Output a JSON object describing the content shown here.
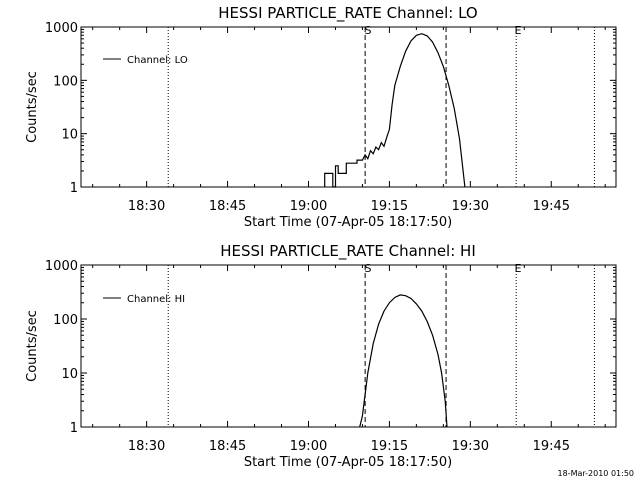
{
  "footer_timestamp": "18-Mar-2010 01:50",
  "chart_data": [
    {
      "type": "line",
      "title": "HESSI PARTICLE_RATE Channel: LO",
      "xlabel": "Start Time (07-Apr-05 18:17:50)",
      "ylabel": "Counts/sec",
      "y_scale": "log",
      "ylim": [
        1,
        1000
      ],
      "xlim": [
        "18:17:50",
        "19:57:00"
      ],
      "x_ticks": [
        "18:30",
        "18:45",
        "19:00",
        "19:15",
        "19:30",
        "19:45"
      ],
      "y_ticks": [
        "1",
        "10",
        "100",
        "1000"
      ],
      "legend": {
        "position": "top-left",
        "entries": [
          "Channel: LO"
        ]
      },
      "markers": [
        {
          "label": "S",
          "time": "19:10:30",
          "style": "dashed"
        },
        {
          "label": "",
          "time": "19:25:30",
          "style": "dashed"
        },
        {
          "label": "E",
          "time": "19:38:30",
          "style": "dotted"
        }
      ],
      "extra_dotted_lines": [
        "18:34:00",
        "19:53:00"
      ],
      "series": [
        {
          "name": "Channel: LO",
          "points": [
            [
              "19:03:00",
              1
            ],
            [
              "19:03:00",
              1.8
            ],
            [
              "19:04:30",
              1.8
            ],
            [
              "19:04:30",
              1
            ],
            [
              "19:05:00",
              1
            ],
            [
              "19:05:00",
              2.5
            ],
            [
              "19:05:30",
              2.5
            ],
            [
              "19:05:30",
              1.8
            ],
            [
              "19:07:00",
              1.8
            ],
            [
              "19:07:00",
              2.8
            ],
            [
              "19:09:00",
              2.8
            ],
            [
              "19:09:00",
              3.2
            ],
            [
              "19:10:00",
              3.2
            ],
            [
              "19:10:30",
              4
            ],
            [
              "19:11:00",
              3.4
            ],
            [
              "19:11:30",
              4.8
            ],
            [
              "19:12:00",
              4.2
            ],
            [
              "19:12:30",
              5.6
            ],
            [
              "19:13:00",
              5
            ],
            [
              "19:13:30",
              6.8
            ],
            [
              "19:14:00",
              5.8
            ],
            [
              "19:14:30",
              8.5
            ],
            [
              "19:15:00",
              12
            ],
            [
              "19:15:30",
              35
            ],
            [
              "19:16:00",
              80
            ],
            [
              "19:17:00",
              180
            ],
            [
              "19:18:00",
              350
            ],
            [
              "19:19:00",
              550
            ],
            [
              "19:20:00",
              700
            ],
            [
              "19:21:00",
              750
            ],
            [
              "19:22:00",
              680
            ],
            [
              "19:23:00",
              520
            ],
            [
              "19:24:00",
              330
            ],
            [
              "19:25:00",
              180
            ],
            [
              "19:26:00",
              80
            ],
            [
              "19:27:00",
              30
            ],
            [
              "19:28:00",
              8
            ],
            [
              "19:28:40",
              2
            ],
            [
              "19:29:00",
              1
            ]
          ]
        }
      ]
    },
    {
      "type": "line",
      "title": "HESSI PARTICLE_RATE Channel: HI",
      "xlabel": "Start Time (07-Apr-05 18:17:50)",
      "ylabel": "Counts/sec",
      "y_scale": "log",
      "ylim": [
        1,
        1000
      ],
      "xlim": [
        "18:17:50",
        "19:57:00"
      ],
      "x_ticks": [
        "18:30",
        "18:45",
        "19:00",
        "19:15",
        "19:30",
        "19:45"
      ],
      "y_ticks": [
        "1",
        "10",
        "100",
        "1000"
      ],
      "legend": {
        "position": "top-left",
        "entries": [
          "Channel: HI"
        ]
      },
      "markers": [
        {
          "label": "S",
          "time": "19:10:30",
          "style": "dashed"
        },
        {
          "label": "",
          "time": "19:25:30",
          "style": "dashed"
        },
        {
          "label": "E",
          "time": "19:38:30",
          "style": "dotted"
        }
      ],
      "extra_dotted_lines": [
        "18:34:00",
        "19:53:00"
      ],
      "series": [
        {
          "name": "Channel: HI",
          "points": [
            [
              "19:09:30",
              1
            ],
            [
              "19:10:00",
              1.6
            ],
            [
              "19:10:30",
              4
            ],
            [
              "19:11:00",
              10
            ],
            [
              "19:12:00",
              35
            ],
            [
              "19:13:00",
              80
            ],
            [
              "19:14:00",
              140
            ],
            [
              "19:15:00",
              200
            ],
            [
              "19:16:00",
              250
            ],
            [
              "19:17:00",
              280
            ],
            [
              "19:18:00",
              270
            ],
            [
              "19:19:00",
              240
            ],
            [
              "19:20:00",
              190
            ],
            [
              "19:21:00",
              140
            ],
            [
              "19:22:00",
              90
            ],
            [
              "19:23:00",
              50
            ],
            [
              "19:24:00",
              22
            ],
            [
              "19:24:40",
              10
            ],
            [
              "19:25:20",
              3
            ],
            [
              "19:25:40",
              1
            ]
          ]
        }
      ]
    }
  ]
}
